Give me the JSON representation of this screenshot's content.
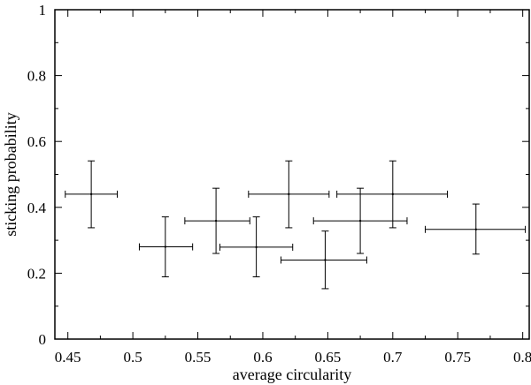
{
  "chart_data": {
    "type": "scatter",
    "title": "",
    "xlabel": "average circularity",
    "ylabel": "sticking probability",
    "xlim": [
      0.44,
      0.805
    ],
    "ylim": [
      0,
      1
    ],
    "grid": false,
    "legend": "none",
    "xticks": [
      "0.45",
      "0.5",
      "0.55",
      "0.6",
      "0.65",
      "0.7",
      "0.75",
      "0.8"
    ],
    "xtick_values": [
      0.45,
      0.5,
      0.55,
      0.6,
      0.65,
      0.7,
      0.75,
      0.8
    ],
    "yticks": [
      "0",
      "0.2",
      "0.4",
      "0.6",
      "0.8",
      "1"
    ],
    "ytick_values": [
      0,
      0.2,
      0.4,
      0.6,
      0.8,
      1.0
    ],
    "series": [
      {
        "points": [
          {
            "x": 0.468,
            "y": 0.44,
            "x_err": [
              0.448,
              0.488
            ],
            "y_err": [
              0.338,
              0.541
            ]
          },
          {
            "x": 0.525,
            "y": 0.28,
            "x_err": [
              0.505,
              0.546
            ],
            "y_err": [
              0.189,
              0.371
            ]
          },
          {
            "x": 0.564,
            "y": 0.359,
            "x_err": [
              0.54,
              0.59
            ],
            "y_err": [
              0.26,
              0.458
            ]
          },
          {
            "x": 0.595,
            "y": 0.279,
            "x_err": [
              0.567,
              0.623
            ],
            "y_err": [
              0.189,
              0.371
            ]
          },
          {
            "x": 0.62,
            "y": 0.44,
            "x_err": [
              0.589,
              0.651
            ],
            "y_err": [
              0.338,
              0.541
            ]
          },
          {
            "x": 0.648,
            "y": 0.24,
            "x_err": [
              0.614,
              0.68
            ],
            "y_err": [
              0.153,
              0.328
            ]
          },
          {
            "x": 0.675,
            "y": 0.359,
            "x_err": [
              0.639,
              0.711
            ],
            "y_err": [
              0.26,
              0.458
            ]
          },
          {
            "x": 0.7,
            "y": 0.44,
            "x_err": [
              0.657,
              0.742
            ],
            "y_err": [
              0.338,
              0.541
            ]
          },
          {
            "x": 0.764,
            "y": 0.333,
            "x_err": [
              0.725,
              0.802
            ],
            "y_err": [
              0.258,
              0.41
            ]
          }
        ]
      }
    ]
  }
}
